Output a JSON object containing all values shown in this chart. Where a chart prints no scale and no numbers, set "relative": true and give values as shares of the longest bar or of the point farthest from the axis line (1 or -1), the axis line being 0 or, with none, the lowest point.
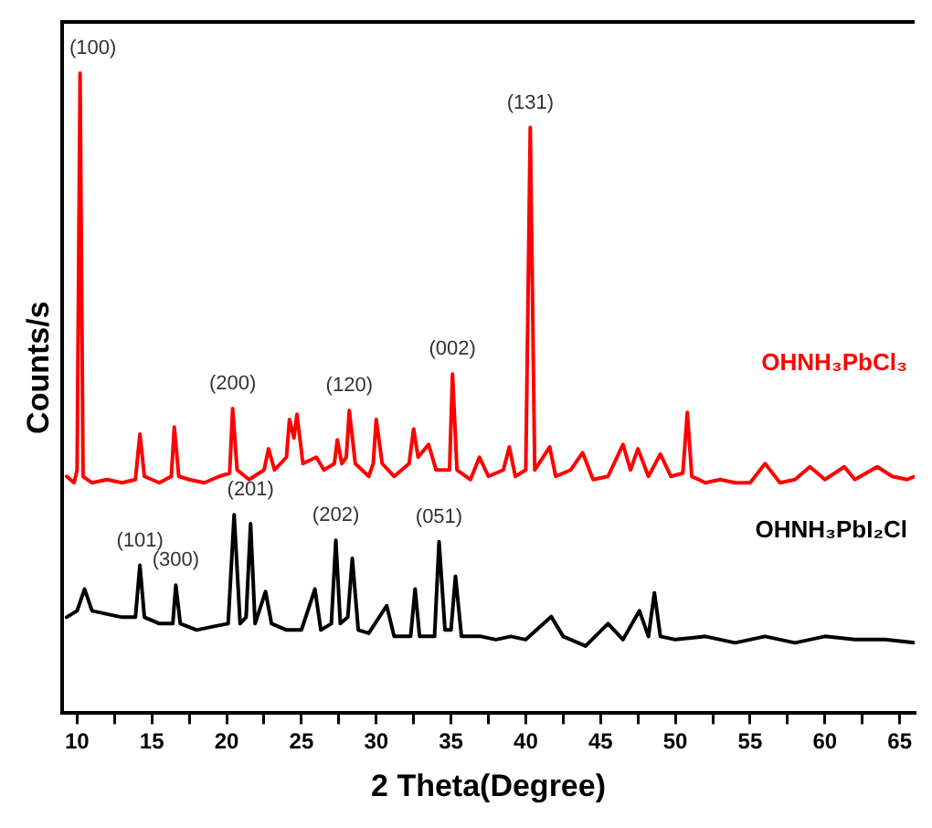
{
  "chart_data": {
    "type": "line",
    "relative": true,
    "xlabel": "2 Theta(Degree)",
    "ylabel": "Counts/s",
    "xlim": [
      9,
      66
    ],
    "xticks": [
      10,
      {
        "value": 12.5,
        "label": null
      },
      15,
      {
        "value": 17.5,
        "label": null
      },
      20,
      {
        "value": 22.5,
        "label": null
      },
      25,
      {
        "value": 27.5,
        "label": null
      },
      30,
      {
        "value": 32.5,
        "label": null
      },
      35,
      {
        "value": 37.5,
        "label": null
      },
      40,
      {
        "value": 42.5,
        "label": null
      },
      45,
      {
        "value": 47.5,
        "label": null
      },
      50,
      {
        "value": 52.5,
        "label": null
      },
      55,
      {
        "value": 57.5,
        "label": null
      },
      60,
      {
        "value": 62.5,
        "label": null
      },
      65
    ],
    "grid": false,
    "legend": false,
    "marker": "none",
    "line_style": "solid",
    "series": [
      {
        "name": "OHNH₃PbCl₃",
        "color": "#ff0000",
        "x": [
          9.3,
          9.8,
          10.0,
          10.2,
          10.4,
          11,
          12,
          13,
          13.9,
          14.2,
          14.5,
          15.5,
          16.3,
          16.5,
          16.8,
          17.5,
          18.5,
          19.5,
          20.2,
          20.4,
          20.7,
          21.5,
          22.5,
          22.8,
          23.2,
          24.0,
          24.2,
          24.5,
          24.7,
          25.1,
          26,
          26.5,
          27.2,
          27.4,
          27.7,
          28.0,
          28.2,
          28.6,
          29.5,
          29.8,
          30.0,
          30.4,
          31.2,
          32.2,
          32.5,
          32.8,
          33.5,
          34,
          34.9,
          35.1,
          35.4,
          36.3,
          36.9,
          37.5,
          38.5,
          38.9,
          39.3,
          40.0,
          40.3,
          40.6,
          41.6,
          42,
          43,
          43.8,
          44.5,
          45.5,
          46.5,
          47,
          47.5,
          48.2,
          49,
          49.7,
          50.5,
          50.8,
          51.1,
          52,
          53,
          54,
          55,
          56,
          57,
          58,
          59,
          60,
          61.3,
          62,
          63.5,
          64.5,
          65.5,
          66
        ],
        "values": [
          0.37,
          0.36,
          0.38,
          1.0,
          0.37,
          0.36,
          0.365,
          0.36,
          0.365,
          0.436,
          0.37,
          0.36,
          0.37,
          0.447,
          0.37,
          0.365,
          0.36,
          0.37,
          0.375,
          0.476,
          0.38,
          0.365,
          0.38,
          0.413,
          0.38,
          0.4,
          0.459,
          0.43,
          0.467,
          0.39,
          0.4,
          0.38,
          0.39,
          0.427,
          0.39,
          0.4,
          0.473,
          0.39,
          0.37,
          0.39,
          0.459,
          0.39,
          0.37,
          0.39,
          0.444,
          0.4,
          0.42,
          0.38,
          0.38,
          0.53,
          0.38,
          0.365,
          0.4,
          0.37,
          0.38,
          0.416,
          0.37,
          0.38,
          0.915,
          0.38,
          0.416,
          0.37,
          0.38,
          0.407,
          0.365,
          0.37,
          0.42,
          0.38,
          0.413,
          0.37,
          0.405,
          0.37,
          0.375,
          0.47,
          0.37,
          0.36,
          0.365,
          0.36,
          0.36,
          0.39,
          0.36,
          0.365,
          0.385,
          0.365,
          0.385,
          0.365,
          0.385,
          0.37,
          0.365,
          0.37
        ]
      },
      {
        "name": "OHNH₃PbI₂Cl",
        "color": "#000000",
        "x": [
          9.3,
          10,
          10.5,
          11,
          12,
          13,
          13.9,
          14.2,
          14.5,
          15.5,
          16.4,
          16.6,
          16.9,
          18,
          19,
          20.1,
          20.5,
          20.9,
          21.3,
          21.6,
          21.9,
          22.6,
          23,
          24,
          25,
          25.9,
          26.3,
          27.0,
          27.3,
          27.6,
          28.1,
          28.4,
          28.8,
          29.5,
          30.7,
          31.2,
          32.3,
          32.6,
          32.9,
          33.9,
          34.2,
          34.6,
          35.0,
          35.3,
          35.7,
          37,
          38,
          39,
          40,
          41.7,
          42.5,
          44,
          45.5,
          46.5,
          47.6,
          48.2,
          48.6,
          49,
          50,
          52,
          54,
          56,
          58,
          60,
          62,
          64,
          66
        ],
        "values": [
          0.15,
          0.16,
          0.194,
          0.16,
          0.155,
          0.15,
          0.15,
          0.231,
          0.15,
          0.14,
          0.14,
          0.2,
          0.14,
          0.13,
          0.135,
          0.14,
          0.31,
          0.14,
          0.15,
          0.296,
          0.14,
          0.19,
          0.14,
          0.13,
          0.13,
          0.194,
          0.13,
          0.14,
          0.27,
          0.14,
          0.15,
          0.242,
          0.13,
          0.125,
          0.168,
          0.12,
          0.12,
          0.194,
          0.12,
          0.12,
          0.268,
          0.13,
          0.13,
          0.214,
          0.12,
          0.12,
          0.115,
          0.12,
          0.115,
          0.151,
          0.12,
          0.105,
          0.14,
          0.115,
          0.16,
          0.12,
          0.188,
          0.12,
          0.115,
          0.12,
          0.11,
          0.12,
          0.11,
          0.12,
          0.115,
          0.115,
          0.11
        ]
      }
    ],
    "annotations": [
      {
        "text": "(100)",
        "x": 10.2,
        "y": 1.0
      },
      {
        "text": "(131)",
        "x": 40.3,
        "y": 0.915
      },
      {
        "text": "(200)",
        "x": 20.4,
        "y": 0.476
      },
      {
        "text": "(120)",
        "x": 28.2,
        "y": 0.473
      },
      {
        "text": "(002)",
        "x": 35.1,
        "y": 0.53
      },
      {
        "text": "(101)",
        "x": 14.2,
        "y": 0.231
      },
      {
        "text": "(300)",
        "x": 16.6,
        "y": 0.2
      },
      {
        "text": "(201)",
        "x": 21.6,
        "y": 0.296
      },
      {
        "text": "(202)",
        "x": 27.3,
        "y": 0.27
      },
      {
        "text": "(051)",
        "x": 34.2,
        "y": 0.268
      }
    ]
  }
}
